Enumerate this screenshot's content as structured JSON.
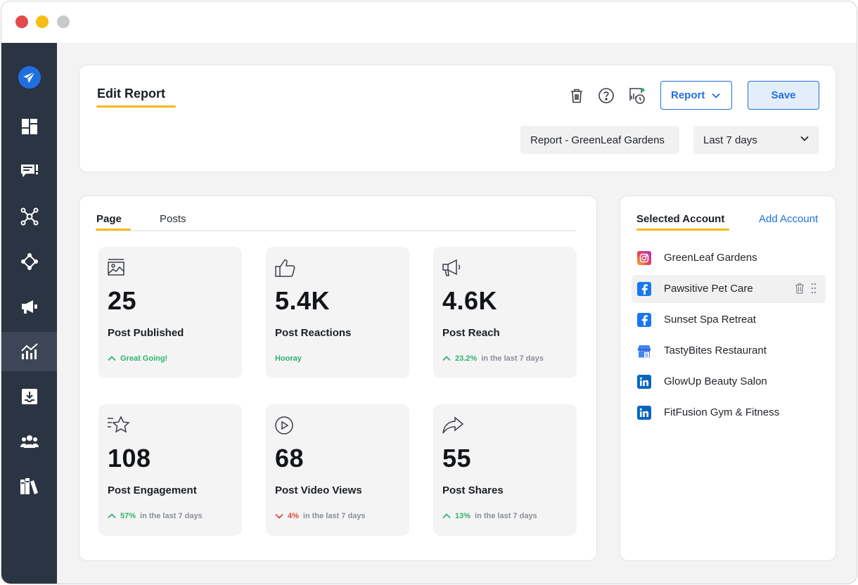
{
  "colors": {
    "sidebar_bg": "#2b3442",
    "accent_blue": "#1f6fe0",
    "underline_yellow": "#f6b91a",
    "positive_green": "#2eb36c",
    "negative_red": "#e0473c"
  },
  "sidebar": {
    "items": [
      {
        "icon": "send-logo-icon"
      },
      {
        "icon": "dashboard-icon"
      },
      {
        "icon": "messages-icon"
      },
      {
        "icon": "network-icon"
      },
      {
        "icon": "workflow-icon"
      },
      {
        "icon": "megaphone-icon"
      },
      {
        "icon": "analytics-icon",
        "active": true
      },
      {
        "icon": "download-icon"
      },
      {
        "icon": "team-icon"
      },
      {
        "icon": "library-icon"
      }
    ]
  },
  "header": {
    "title": "Edit Report",
    "report_button": "Report",
    "save_button": "Save",
    "report_name": "Report - GreenLeaf Gardens",
    "date_range": "Last 7 days",
    "icons": [
      "trash-icon",
      "help-icon",
      "schedule-icon"
    ]
  },
  "tabs": {
    "page": "Page",
    "posts": "Posts"
  },
  "stats": [
    {
      "value": "25",
      "label": "Post Published",
      "trend": "up",
      "highlight": "Great Going!",
      "note": ""
    },
    {
      "value": "5.4K",
      "label": "Post Reactions",
      "trend": "none",
      "highlight": "Hooray",
      "note": ""
    },
    {
      "value": "4.6K",
      "label": "Post Reach",
      "trend": "up",
      "highlight": "23.2%",
      "note": "in the last 7 days"
    },
    {
      "value": "108",
      "label": "Post Engagement",
      "trend": "up",
      "highlight": "57%",
      "note": "in the last 7 days"
    },
    {
      "value": "68",
      "label": "Post Video Views",
      "trend": "down",
      "highlight": "4%",
      "note": "in the last 7 days"
    },
    {
      "value": "55",
      "label": "Post Shares",
      "trend": "up",
      "highlight": "13%",
      "note": "in the last 7 days"
    }
  ],
  "accounts": {
    "title": "Selected Account",
    "add_label": "Add Account",
    "items": [
      {
        "name": "GreenLeaf Gardens",
        "platform": "instagram"
      },
      {
        "name": "Pawsitive Pet Care",
        "platform": "facebook"
      },
      {
        "name": "Sunset Spa Retreat",
        "platform": "facebook"
      },
      {
        "name": "TastyBites Restaurant",
        "platform": "google-business"
      },
      {
        "name": "GlowUp Beauty Salon",
        "platform": "linkedin"
      },
      {
        "name": "FitFusion Gym & Fitness",
        "platform": "linkedin"
      }
    ]
  }
}
